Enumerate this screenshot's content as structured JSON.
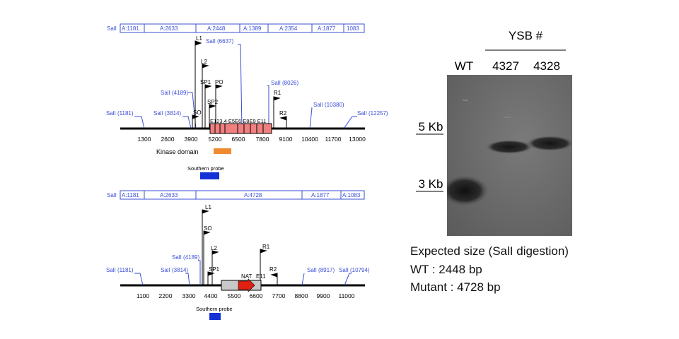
{
  "top_map": {
    "segments": [
      {
        "label": "SalI"
      },
      {
        "label": "A:1181"
      },
      {
        "label": "A:2633"
      },
      {
        "label": "A:2448"
      },
      {
        "label": "A:1389"
      },
      {
        "label": "A:2354"
      },
      {
        "label": "A:1877"
      },
      {
        "label": "1083"
      }
    ],
    "sites": [
      "SalI (1181)",
      "SalI (3814)",
      "SalI (4189)",
      "SalI (6637)",
      "SalI (8026)",
      "SalI (10380)",
      "SalI (12257)"
    ],
    "primers": [
      "L1",
      "L2",
      "SP1",
      "PO",
      "SP2",
      "SO",
      "R1",
      "R2"
    ],
    "exons": "E123.4 E5E6 E8E9 E11",
    "axis_ticks": [
      "1300",
      "2600",
      "3900",
      "5200",
      "6500",
      "7800",
      "9100",
      "10400",
      "11700",
      "13000"
    ],
    "kinase_label": "Kinase domain",
    "probe_label": "Southern probe"
  },
  "bottom_map": {
    "segments": [
      {
        "label": "SalI"
      },
      {
        "label": "A:1181"
      },
      {
        "label": "A:2633"
      },
      {
        "label": "A:4728"
      },
      {
        "label": "A:1877"
      },
      {
        "label": "A:1083"
      }
    ],
    "sites": [
      "SalI (1181)",
      "SalI (3814)",
      "SalI (4189)",
      "SalI (8917)",
      "SalI (10794)"
    ],
    "primers": [
      "L1",
      "SO",
      "L2",
      "SP1",
      "R1",
      "R2"
    ],
    "nat_label": "NAT",
    "e11_label": "E11",
    "axis_ticks": [
      "1100",
      "2200",
      "3300",
      "4400",
      "5500",
      "6600",
      "7700",
      "8800",
      "9900",
      "11000"
    ],
    "probe_label": "Southern probe"
  },
  "blot": {
    "strain_header": "YSB #",
    "lanes": [
      "WT",
      "4327",
      "4328"
    ],
    "markers": [
      "5 Kb",
      "3 Kb"
    ]
  },
  "caption": {
    "line1": "Expected size (SalI digestion)",
    "line2": "WT : 2448 bp",
    "line3": "Mutant : 4728 bp"
  },
  "colors": {
    "map_blue": "#3b4fd6",
    "exon_fill": "#f08080",
    "kinase_orange": "#f08a30",
    "probe_blue": "#1431d6",
    "nat_red": "#e02010"
  }
}
